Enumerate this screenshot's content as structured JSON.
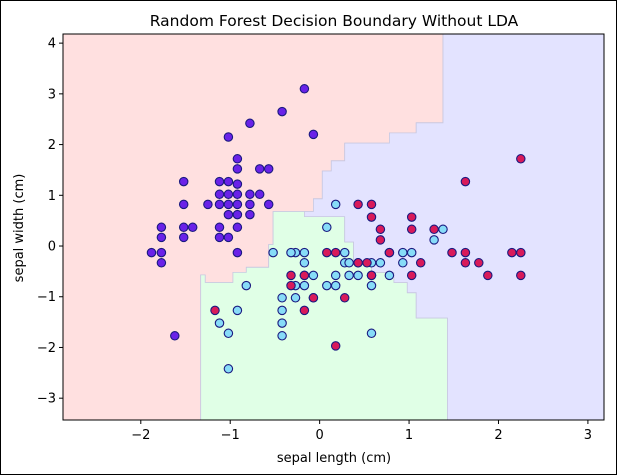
{
  "chart_data": {
    "type": "scatter",
    "title": "Random Forest Decision Boundary Without LDA",
    "xlabel": "sepal length (cm)",
    "ylabel": "sepal width (cm)",
    "xlim": [
      -2.87,
      3.18
    ],
    "ylim": [
      -3.43,
      4.18
    ],
    "x_ticks": [
      -2,
      -1,
      0,
      1,
      2,
      3
    ],
    "y_ticks": [
      -3,
      -2,
      -1,
      0,
      1,
      2,
      3,
      4
    ],
    "grid": false,
    "legend": "none",
    "colors": {
      "region_class0": "#ffe0e0",
      "region_class1": "#e0ffe6",
      "region_class2": "#e3e3ff",
      "region_edge": "#c8c8e0",
      "point_class0": "#6a22e8",
      "point_class1": "#87dcf8",
      "point_class2": "#d81a5a",
      "point_edge": "#1a1a80"
    },
    "regions": [
      {
        "class": 0,
        "polygon": [
          [
            -2.87,
            -3.43
          ],
          [
            -1.33,
            -3.43
          ],
          [
            -1.33,
            -0.57
          ],
          [
            -1.28,
            -0.57
          ],
          [
            -1.28,
            -0.72
          ],
          [
            -0.97,
            -0.72
          ],
          [
            -0.97,
            -0.52
          ],
          [
            -0.82,
            -0.52
          ],
          [
            -0.82,
            -0.42
          ],
          [
            -0.57,
            -0.42
          ],
          [
            -0.57,
            0.03
          ],
          [
            -0.52,
            0.03
          ],
          [
            -0.52,
            0.68
          ],
          [
            -0.07,
            0.68
          ],
          [
            -0.07,
            0.93
          ],
          [
            0.03,
            0.93
          ],
          [
            0.03,
            1.48
          ],
          [
            0.13,
            1.48
          ],
          [
            0.13,
            1.68
          ],
          [
            0.28,
            1.68
          ],
          [
            0.28,
            2.03
          ],
          [
            0.78,
            2.03
          ],
          [
            0.78,
            2.23
          ],
          [
            1.08,
            2.23
          ],
          [
            1.08,
            2.43
          ],
          [
            1.38,
            2.43
          ],
          [
            1.38,
            3.33
          ],
          [
            1.38,
            4.18
          ],
          [
            -2.87,
            4.18
          ]
        ]
      },
      {
        "class": 1,
        "polygon": [
          [
            -1.33,
            -3.43
          ],
          [
            1.43,
            -3.43
          ],
          [
            1.43,
            -1.42
          ],
          [
            1.08,
            -1.42
          ],
          [
            1.08,
            -0.92
          ],
          [
            0.98,
            -0.92
          ],
          [
            0.98,
            -0.72
          ],
          [
            0.83,
            -0.72
          ],
          [
            0.83,
            -0.52
          ],
          [
            0.58,
            -0.52
          ],
          [
            0.58,
            -0.32
          ],
          [
            0.38,
            -0.32
          ],
          [
            0.38,
            0.08
          ],
          [
            0.28,
            0.08
          ],
          [
            0.28,
            0.58
          ],
          [
            -0.17,
            0.58
          ],
          [
            -0.17,
            0.68
          ],
          [
            -0.52,
            0.68
          ],
          [
            -0.52,
            0.03
          ],
          [
            -0.57,
            0.03
          ],
          [
            -0.57,
            -0.42
          ],
          [
            -0.82,
            -0.42
          ],
          [
            -0.82,
            -0.52
          ],
          [
            -0.97,
            -0.52
          ],
          [
            -0.97,
            -0.72
          ],
          [
            -1.28,
            -0.72
          ],
          [
            -1.28,
            -0.57
          ],
          [
            -1.33,
            -0.57
          ]
        ]
      },
      {
        "class": 2,
        "polygon": [
          [
            1.43,
            -3.43
          ],
          [
            3.18,
            -3.43
          ],
          [
            3.18,
            4.18
          ],
          [
            1.38,
            4.18
          ],
          [
            1.38,
            3.33
          ],
          [
            1.38,
            2.43
          ],
          [
            1.08,
            2.43
          ],
          [
            1.08,
            2.23
          ],
          [
            0.78,
            2.23
          ],
          [
            0.78,
            2.03
          ],
          [
            0.28,
            2.03
          ],
          [
            0.28,
            1.68
          ],
          [
            0.13,
            1.68
          ],
          [
            0.13,
            1.48
          ],
          [
            0.03,
            1.48
          ],
          [
            0.03,
            0.93
          ],
          [
            -0.07,
            0.93
          ],
          [
            -0.07,
            0.68
          ],
          [
            -0.17,
            0.68
          ],
          [
            -0.17,
            0.58
          ],
          [
            0.28,
            0.58
          ],
          [
            0.28,
            0.08
          ],
          [
            0.38,
            0.08
          ],
          [
            0.38,
            -0.32
          ],
          [
            0.58,
            -0.32
          ],
          [
            0.58,
            -0.52
          ],
          [
            0.83,
            -0.52
          ],
          [
            0.83,
            -0.72
          ],
          [
            0.98,
            -0.72
          ],
          [
            0.98,
            -0.92
          ],
          [
            1.08,
            -0.92
          ],
          [
            1.08,
            -1.42
          ],
          [
            1.43,
            -1.42
          ]
        ]
      }
    ],
    "series": [
      {
        "class": 0,
        "points": [
          [
            -0.17,
            3.1
          ],
          [
            -0.42,
            2.65
          ],
          [
            -0.78,
            2.42
          ],
          [
            -1.02,
            2.15
          ],
          [
            -0.92,
            1.72
          ],
          [
            -0.92,
            1.52
          ],
          [
            -0.67,
            1.52
          ],
          [
            -0.57,
            1.52
          ],
          [
            -1.52,
            1.27
          ],
          [
            -1.12,
            1.27
          ],
          [
            -1.02,
            1.27
          ],
          [
            -0.92,
            1.22
          ],
          [
            -1.12,
            1.02
          ],
          [
            -1.02,
            1.02
          ],
          [
            -0.92,
            1.02
          ],
          [
            -0.78,
            1.02
          ],
          [
            -0.67,
            1.02
          ],
          [
            -1.52,
            0.82
          ],
          [
            -1.25,
            0.82
          ],
          [
            -1.12,
            0.82
          ],
          [
            -1.02,
            0.82
          ],
          [
            -0.92,
            0.82
          ],
          [
            -0.78,
            0.82
          ],
          [
            -0.57,
            0.82
          ],
          [
            -1.02,
            0.62
          ],
          [
            -0.92,
            0.62
          ],
          [
            -0.78,
            0.62
          ],
          [
            -1.77,
            0.37
          ],
          [
            -1.52,
            0.37
          ],
          [
            -1.42,
            0.37
          ],
          [
            -1.12,
            0.37
          ],
          [
            -0.92,
            0.37
          ],
          [
            -1.77,
            0.17
          ],
          [
            -1.52,
            0.17
          ],
          [
            -1.12,
            0.17
          ],
          [
            -1.02,
            0.17
          ],
          [
            -1.88,
            -0.13
          ],
          [
            -1.77,
            -0.13
          ],
          [
            -0.92,
            -0.13
          ],
          [
            -1.77,
            -0.33
          ],
          [
            -1.62,
            -1.77
          ],
          [
            -0.07,
            2.2
          ]
        ]
      },
      {
        "class": 1,
        "points": [
          [
            0.18,
            0.82
          ],
          [
            0.08,
            0.37
          ],
          [
            -0.52,
            -0.13
          ],
          [
            -0.27,
            -0.13
          ],
          [
            -0.17,
            -0.13
          ],
          [
            0.28,
            -0.13
          ],
          [
            -0.32,
            -0.13
          ],
          [
            -0.17,
            -0.33
          ],
          [
            0.28,
            -0.33
          ],
          [
            0.33,
            -0.33
          ],
          [
            0.43,
            -0.33
          ],
          [
            0.58,
            -0.33
          ],
          [
            0.68,
            -0.33
          ],
          [
            0.78,
            -0.13
          ],
          [
            0.93,
            -0.13
          ],
          [
            1.03,
            -0.13
          ],
          [
            1.28,
            0.12
          ],
          [
            1.38,
            0.33
          ],
          [
            0.18,
            -0.58
          ],
          [
            0.33,
            -0.58
          ],
          [
            0.43,
            -0.58
          ],
          [
            0.58,
            -0.58
          ],
          [
            0.78,
            -0.58
          ],
          [
            0.93,
            -0.33
          ],
          [
            -0.17,
            -0.58
          ],
          [
            -0.07,
            -0.58
          ],
          [
            -0.27,
            -0.78
          ],
          [
            -0.17,
            -0.78
          ],
          [
            0.08,
            -0.78
          ],
          [
            0.18,
            -0.78
          ],
          [
            0.58,
            -0.78
          ],
          [
            -0.82,
            -0.78
          ],
          [
            -0.42,
            -1.02
          ],
          [
            -0.27,
            -1.02
          ],
          [
            -0.07,
            -1.02
          ],
          [
            -0.92,
            -1.27
          ],
          [
            -0.42,
            -1.27
          ],
          [
            -1.12,
            -1.52
          ],
          [
            -0.42,
            -1.52
          ],
          [
            -0.42,
            -1.77
          ],
          [
            -1.02,
            -1.72
          ],
          [
            0.58,
            -1.72
          ],
          [
            -1.02,
            -2.42
          ]
        ]
      },
      {
        "class": 2,
        "points": [
          [
            2.25,
            1.72
          ],
          [
            1.63,
            1.27
          ],
          [
            0.43,
            0.82
          ],
          [
            0.58,
            0.82
          ],
          [
            0.58,
            0.57
          ],
          [
            1.03,
            0.57
          ],
          [
            1.28,
            0.33
          ],
          [
            1.03,
            0.33
          ],
          [
            0.68,
            0.33
          ],
          [
            0.68,
            0.12
          ],
          [
            0.78,
            -0.13
          ],
          [
            0.08,
            -0.13
          ],
          [
            0.18,
            -0.13
          ],
          [
            1.48,
            -0.13
          ],
          [
            1.63,
            -0.13
          ],
          [
            2.15,
            -0.13
          ],
          [
            2.25,
            -0.13
          ],
          [
            0.43,
            -0.33
          ],
          [
            0.53,
            -0.33
          ],
          [
            1.13,
            -0.33
          ],
          [
            1.63,
            -0.33
          ],
          [
            1.78,
            -0.33
          ],
          [
            -0.17,
            -0.58
          ],
          [
            -0.32,
            -0.58
          ],
          [
            0.58,
            -0.58
          ],
          [
            1.03,
            -0.58
          ],
          [
            1.88,
            -0.58
          ],
          [
            2.25,
            -0.58
          ],
          [
            -0.32,
            -0.78
          ],
          [
            -0.07,
            -1.02
          ],
          [
            0.28,
            -1.02
          ],
          [
            -0.17,
            -1.27
          ],
          [
            -1.17,
            -1.27
          ],
          [
            0.18,
            -1.97
          ]
        ]
      }
    ]
  }
}
